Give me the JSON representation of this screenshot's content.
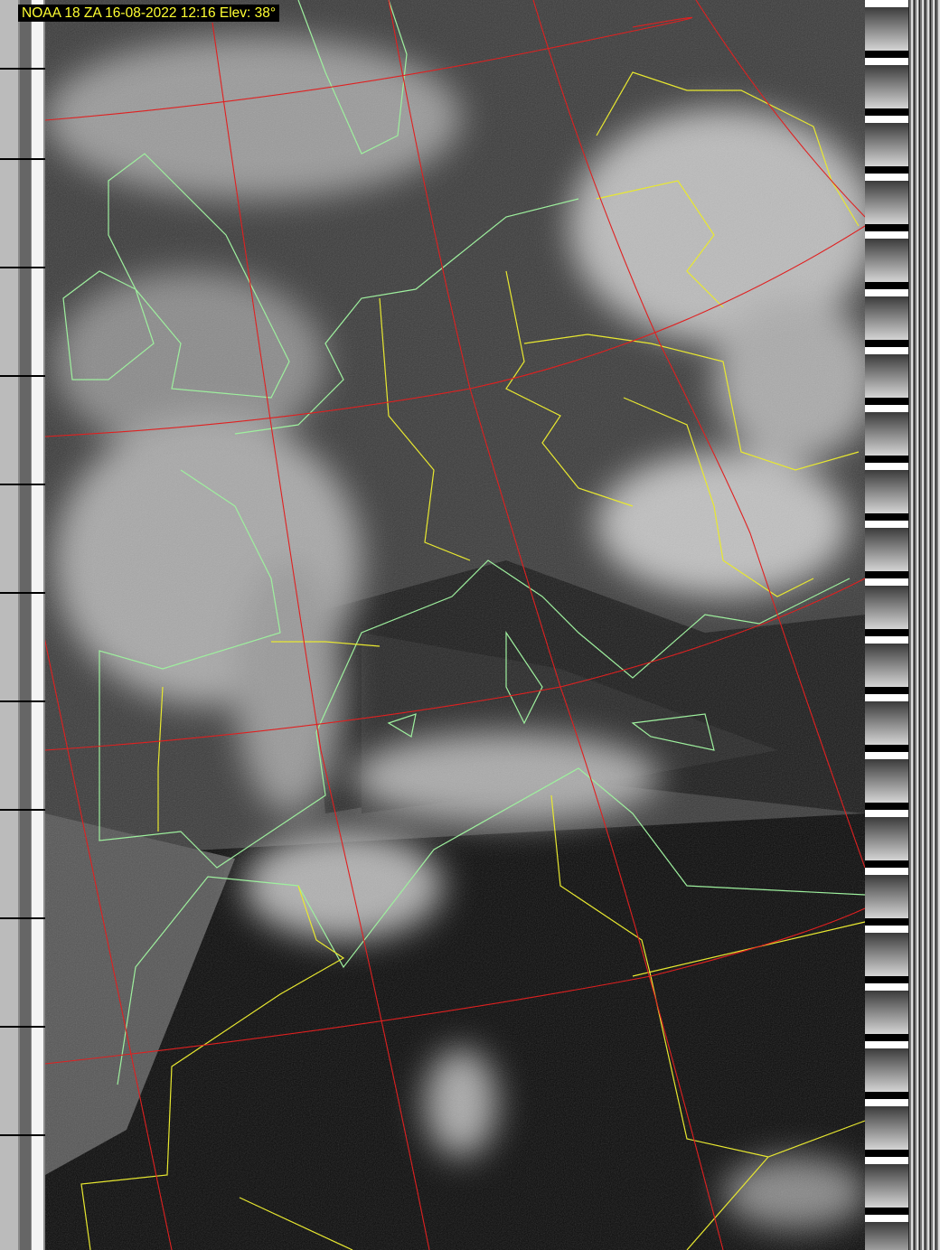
{
  "caption": "NOAA 18 ZA 16-08-2022 12:16 Elev: 38°",
  "colors": {
    "caption_text": "#ffff33",
    "graticule": "#e02020",
    "country_borders": "#e8e830",
    "coastlines": "#9ef09e"
  }
}
